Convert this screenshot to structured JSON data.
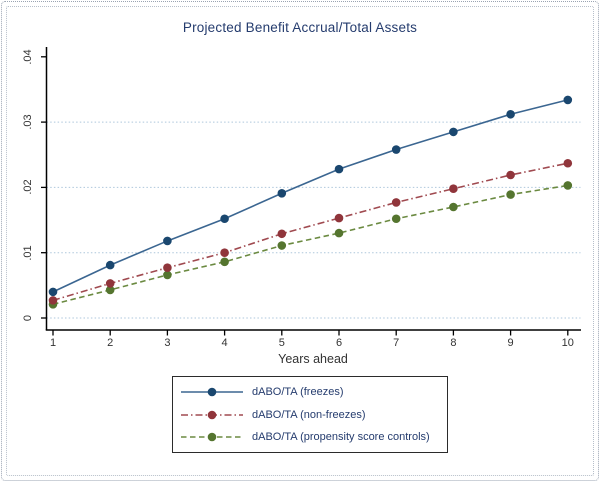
{
  "window": {
    "background": "#ffffff",
    "frame_border_outer": "#9aa4b2",
    "frame_border_inner": "#b6bfca"
  },
  "chart_data": {
    "type": "line",
    "title": "Projected Benefit Accrual/Total Assets",
    "xlabel": "Years ahead",
    "ylabel": "",
    "x": [
      1,
      2,
      3,
      4,
      5,
      6,
      7,
      8,
      9,
      10
    ],
    "x_tick_labels": [
      "1",
      "2",
      "3",
      "4",
      "5",
      "6",
      "7",
      "8",
      "9",
      "10"
    ],
    "y_tick_values": [
      0,
      0.01,
      0.02,
      0.03,
      0.04
    ],
    "y_tick_labels": [
      "0",
      ".01",
      ".02",
      ".03",
      ".04"
    ],
    "y_grid_values": [
      0,
      0.01,
      0.02,
      0.03
    ],
    "ylim": [
      0,
      0.04
    ],
    "xlim": [
      1,
      10
    ],
    "grid": "horizontal-dotted",
    "legend_position": "bottom-center",
    "series": [
      {
        "name": "dABO/TA (freezes)",
        "dash": "solid",
        "marker": "circle",
        "marker_color": "#1a476f",
        "line_color": "#3b6691",
        "values": [
          0.004,
          0.0081,
          0.0118,
          0.0152,
          0.0191,
          0.0228,
          0.0258,
          0.0285,
          0.0312,
          0.0334
        ]
      },
      {
        "name": "dABO/TA (non-freezes)",
        "dash": "dash-dot",
        "marker": "circle",
        "marker_color": "#90353b",
        "line_color": "#a04a50",
        "values": [
          0.0027,
          0.0053,
          0.0077,
          0.01,
          0.0129,
          0.0153,
          0.0177,
          0.0198,
          0.0219,
          0.0237
        ]
      },
      {
        "name": "dABO/TA (propensity score controls)",
        "dash": "dashed",
        "marker": "circle",
        "marker_color": "#55752f",
        "line_color": "#6b8a41",
        "values": [
          0.0021,
          0.0043,
          0.0066,
          0.0086,
          0.0111,
          0.013,
          0.0152,
          0.017,
          0.0189,
          0.0203
        ]
      }
    ],
    "colors": {
      "title_text": "#253c6e",
      "legend_text": "#253c6e",
      "tick_text": "#333333",
      "axis_line": "#000000",
      "grid_line": "#aec7dc",
      "legend_border": "#2b2b2b"
    }
  }
}
